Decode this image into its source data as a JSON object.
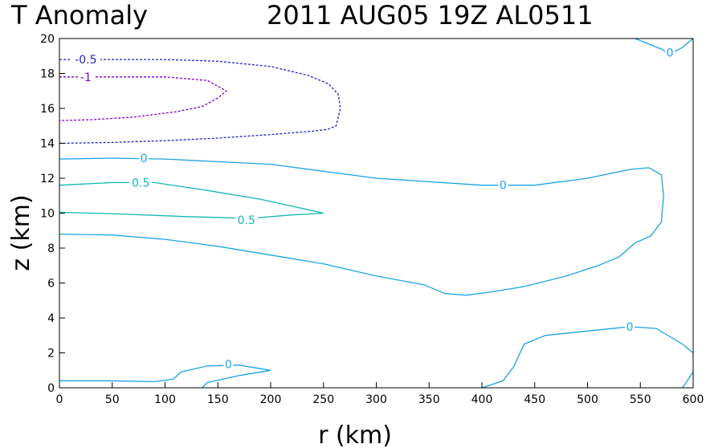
{
  "chart_data": {
    "type": "contour",
    "title_left": "T Anomaly",
    "title_right": "2011 AUG05 19Z   AL0511",
    "xlabel": "r (km)",
    "ylabel": "z (km)",
    "xlim": [
      0,
      600
    ],
    "ylim": [
      0,
      20
    ],
    "xticks": [
      0,
      50,
      100,
      150,
      200,
      250,
      300,
      350,
      400,
      450,
      500,
      550,
      600
    ],
    "yticks": [
      0,
      2,
      4,
      6,
      8,
      10,
      12,
      14,
      16,
      18,
      20
    ],
    "grid": false,
    "colors": {
      "zero": "#1aa3e6",
      "neg05": "#2222cc",
      "neg1": "#8000cc",
      "pos05": "#10b8b0"
    },
    "contours": [
      {
        "level": "-0.5",
        "style": "dashed",
        "color_key": "neg05",
        "points": [
          [
            0,
            18.8
          ],
          [
            60,
            18.8
          ],
          [
            100,
            18.8
          ],
          [
            150,
            18.7
          ],
          [
            200,
            18.4
          ],
          [
            235,
            17.9
          ],
          [
            255,
            17.4
          ],
          [
            264,
            16.8
          ],
          [
            266,
            16.0
          ],
          [
            262,
            15.0
          ],
          [
            254,
            14.8
          ],
          [
            240,
            14.7
          ],
          [
            200,
            14.5
          ],
          [
            150,
            14.3
          ],
          [
            100,
            14.15
          ],
          [
            50,
            14.05
          ],
          [
            0,
            14.0
          ]
        ],
        "labels": [
          {
            "text": "-0.5",
            "x": 25,
            "y": 18.8
          }
        ]
      },
      {
        "level": "-1",
        "style": "dashed",
        "color_key": "neg1",
        "points": [
          [
            0,
            17.8
          ],
          [
            50,
            17.8
          ],
          [
            100,
            17.8
          ],
          [
            140,
            17.6
          ],
          [
            158,
            17.0
          ],
          [
            150,
            16.6
          ],
          [
            135,
            16.1
          ],
          [
            110,
            15.8
          ],
          [
            70,
            15.5
          ],
          [
            30,
            15.35
          ],
          [
            0,
            15.3
          ]
        ],
        "labels": [
          {
            "text": "-1",
            "x": 25,
            "y": 17.8
          }
        ]
      },
      {
        "level": "0",
        "style": "solid",
        "color_key": "zero",
        "points": [
          [
            0,
            13.1
          ],
          [
            50,
            13.15
          ],
          [
            100,
            13.1
          ],
          [
            200,
            12.8
          ],
          [
            300,
            12.0
          ],
          [
            400,
            11.6
          ],
          [
            450,
            11.6
          ],
          [
            500,
            12.0
          ],
          [
            540,
            12.5
          ],
          [
            558,
            12.6
          ],
          [
            570,
            12.2
          ],
          [
            572,
            11.0
          ],
          [
            570,
            9.5
          ],
          [
            560,
            8.7
          ],
          [
            545,
            8.3
          ],
          [
            530,
            7.5
          ],
          [
            510,
            7.0
          ],
          [
            480,
            6.4
          ],
          [
            440,
            5.8
          ],
          [
            410,
            5.5
          ],
          [
            385,
            5.3
          ],
          [
            365,
            5.4
          ],
          [
            345,
            5.9
          ],
          [
            300,
            6.4
          ],
          [
            250,
            7.1
          ],
          [
            200,
            7.6
          ],
          [
            150,
            8.1
          ],
          [
            100,
            8.5
          ],
          [
            50,
            8.75
          ],
          [
            0,
            8.8
          ]
        ],
        "labels": [
          {
            "text": "0",
            "x": 80,
            "y": 13.15
          },
          {
            "text": "0",
            "x": 420,
            "y": 11.6
          }
        ]
      },
      {
        "level": "0.5",
        "style": "solid",
        "color_key": "pos05",
        "points": [
          [
            0,
            11.6
          ],
          [
            50,
            11.75
          ],
          [
            90,
            11.75
          ],
          [
            140,
            11.3
          ],
          [
            190,
            10.8
          ],
          [
            220,
            10.4
          ],
          [
            250,
            10.0
          ],
          [
            220,
            9.9
          ],
          [
            180,
            9.7
          ],
          [
            120,
            9.8
          ],
          [
            60,
            9.95
          ],
          [
            0,
            10.05
          ]
        ],
        "labels": [
          {
            "text": "0.5",
            "x": 77,
            "y": 11.75
          },
          {
            "text": "0.5",
            "x": 177,
            "y": 9.6
          }
        ]
      },
      {
        "level": "0",
        "style": "solid",
        "color_key": "zero",
        "points": [
          [
            0,
            0.4
          ],
          [
            50,
            0.4
          ],
          [
            90,
            0.35
          ],
          [
            108,
            0.5
          ],
          [
            115,
            0.9
          ],
          [
            140,
            1.25
          ],
          [
            170,
            1.3
          ],
          [
            200,
            1.0
          ],
          [
            170,
            0.7
          ],
          [
            140,
            0.3
          ],
          [
            135,
            0.0
          ]
        ],
        "labels": [
          {
            "text": "0",
            "x": 160,
            "y": 1.35
          }
        ]
      },
      {
        "level": "0",
        "style": "solid",
        "color_key": "zero",
        "points": [
          [
            400,
            0.0
          ],
          [
            420,
            0.4
          ],
          [
            430,
            1.2
          ],
          [
            440,
            2.5
          ],
          [
            460,
            3.0
          ],
          [
            500,
            3.25
          ],
          [
            540,
            3.5
          ],
          [
            565,
            3.4
          ],
          [
            590,
            2.5
          ],
          [
            600,
            2.0
          ]
        ],
        "labels": [
          {
            "text": "0",
            "x": 540,
            "y": 3.5
          }
        ]
      },
      {
        "level": "0",
        "style": "solid",
        "color_key": "zero",
        "points": [
          [
            590,
            0.0
          ],
          [
            600,
            0.9
          ]
        ],
        "labels": []
      },
      {
        "level": "0",
        "style": "solid",
        "color_key": "zero",
        "points": [
          [
            545,
            20.0
          ],
          [
            570,
            19.4
          ],
          [
            578,
            19.1
          ],
          [
            590,
            19.5
          ],
          [
            600,
            20.0
          ]
        ],
        "labels": [
          {
            "text": "0",
            "x": 578,
            "y": 19.2
          }
        ]
      }
    ]
  }
}
